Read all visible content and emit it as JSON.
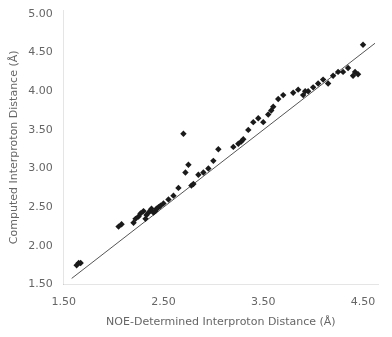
{
  "chart_data": {
    "type": "scatter",
    "xlabel": "NOE-Determined Interproton Distance (Å)",
    "ylabel": "Computed Interproton Distance (Å)",
    "xlim": [
      1.5,
      4.65
    ],
    "ylim": [
      1.5,
      5.05
    ],
    "xticks": [
      {
        "value": 1.5,
        "label": "1.50"
      },
      {
        "value": 2.5,
        "label": "2.50"
      },
      {
        "value": 3.5,
        "label": "3.50"
      },
      {
        "value": 4.5,
        "label": "4.50"
      }
    ],
    "yticks": [
      {
        "value": 1.5,
        "label": "1.50"
      },
      {
        "value": 2.0,
        "label": "2.00"
      },
      {
        "value": 2.5,
        "label": "2.50"
      },
      {
        "value": 3.0,
        "label": "3.00"
      },
      {
        "value": 3.5,
        "label": "3.50"
      },
      {
        "value": 4.0,
        "label": "4.00"
      },
      {
        "value": 4.5,
        "label": "4.50"
      },
      {
        "value": 5.0,
        "label": "5.00"
      }
    ],
    "grid": false,
    "series": [
      {
        "type": "scatter",
        "marker": "diamond",
        "color": "#1a1a1a",
        "x": [
          1.63,
          1.65,
          1.67,
          2.05,
          2.08,
          2.2,
          2.22,
          2.25,
          2.27,
          2.3,
          2.32,
          2.33,
          2.35,
          2.37,
          2.38,
          2.4,
          2.42,
          2.43,
          2.45,
          2.47,
          2.5,
          2.55,
          2.6,
          2.65,
          2.7,
          2.72,
          2.75,
          2.78,
          2.8,
          2.85,
          2.9,
          2.95,
          3.0,
          3.05,
          3.2,
          3.25,
          3.28,
          3.3,
          3.35,
          3.4,
          3.45,
          3.5,
          3.55,
          3.58,
          3.6,
          3.65,
          3.7,
          3.8,
          3.85,
          3.9,
          3.92,
          3.95,
          4.0,
          4.05,
          4.1,
          4.15,
          4.2,
          4.25,
          4.3,
          4.35,
          4.4,
          4.42,
          4.45,
          4.5
        ],
        "values": [
          1.75,
          1.78,
          1.78,
          2.25,
          2.28,
          2.3,
          2.35,
          2.38,
          2.42,
          2.45,
          2.35,
          2.4,
          2.43,
          2.46,
          2.48,
          2.43,
          2.45,
          2.48,
          2.5,
          2.52,
          2.55,
          2.6,
          2.65,
          2.75,
          3.45,
          2.95,
          3.05,
          2.78,
          2.8,
          2.92,
          2.95,
          3.0,
          3.1,
          3.25,
          3.28,
          3.32,
          3.35,
          3.38,
          3.5,
          3.6,
          3.65,
          3.6,
          3.7,
          3.75,
          3.8,
          3.9,
          3.95,
          3.98,
          4.02,
          3.95,
          4.0,
          4.0,
          4.05,
          4.1,
          4.15,
          4.1,
          4.2,
          4.25,
          4.25,
          4.3,
          4.2,
          4.25,
          4.22,
          4.6
        ]
      },
      {
        "type": "line",
        "line_style": "solid",
        "color": "#555555",
        "x": [
          1.58,
          4.62
        ],
        "values": [
          1.58,
          4.62
        ]
      }
    ]
  }
}
